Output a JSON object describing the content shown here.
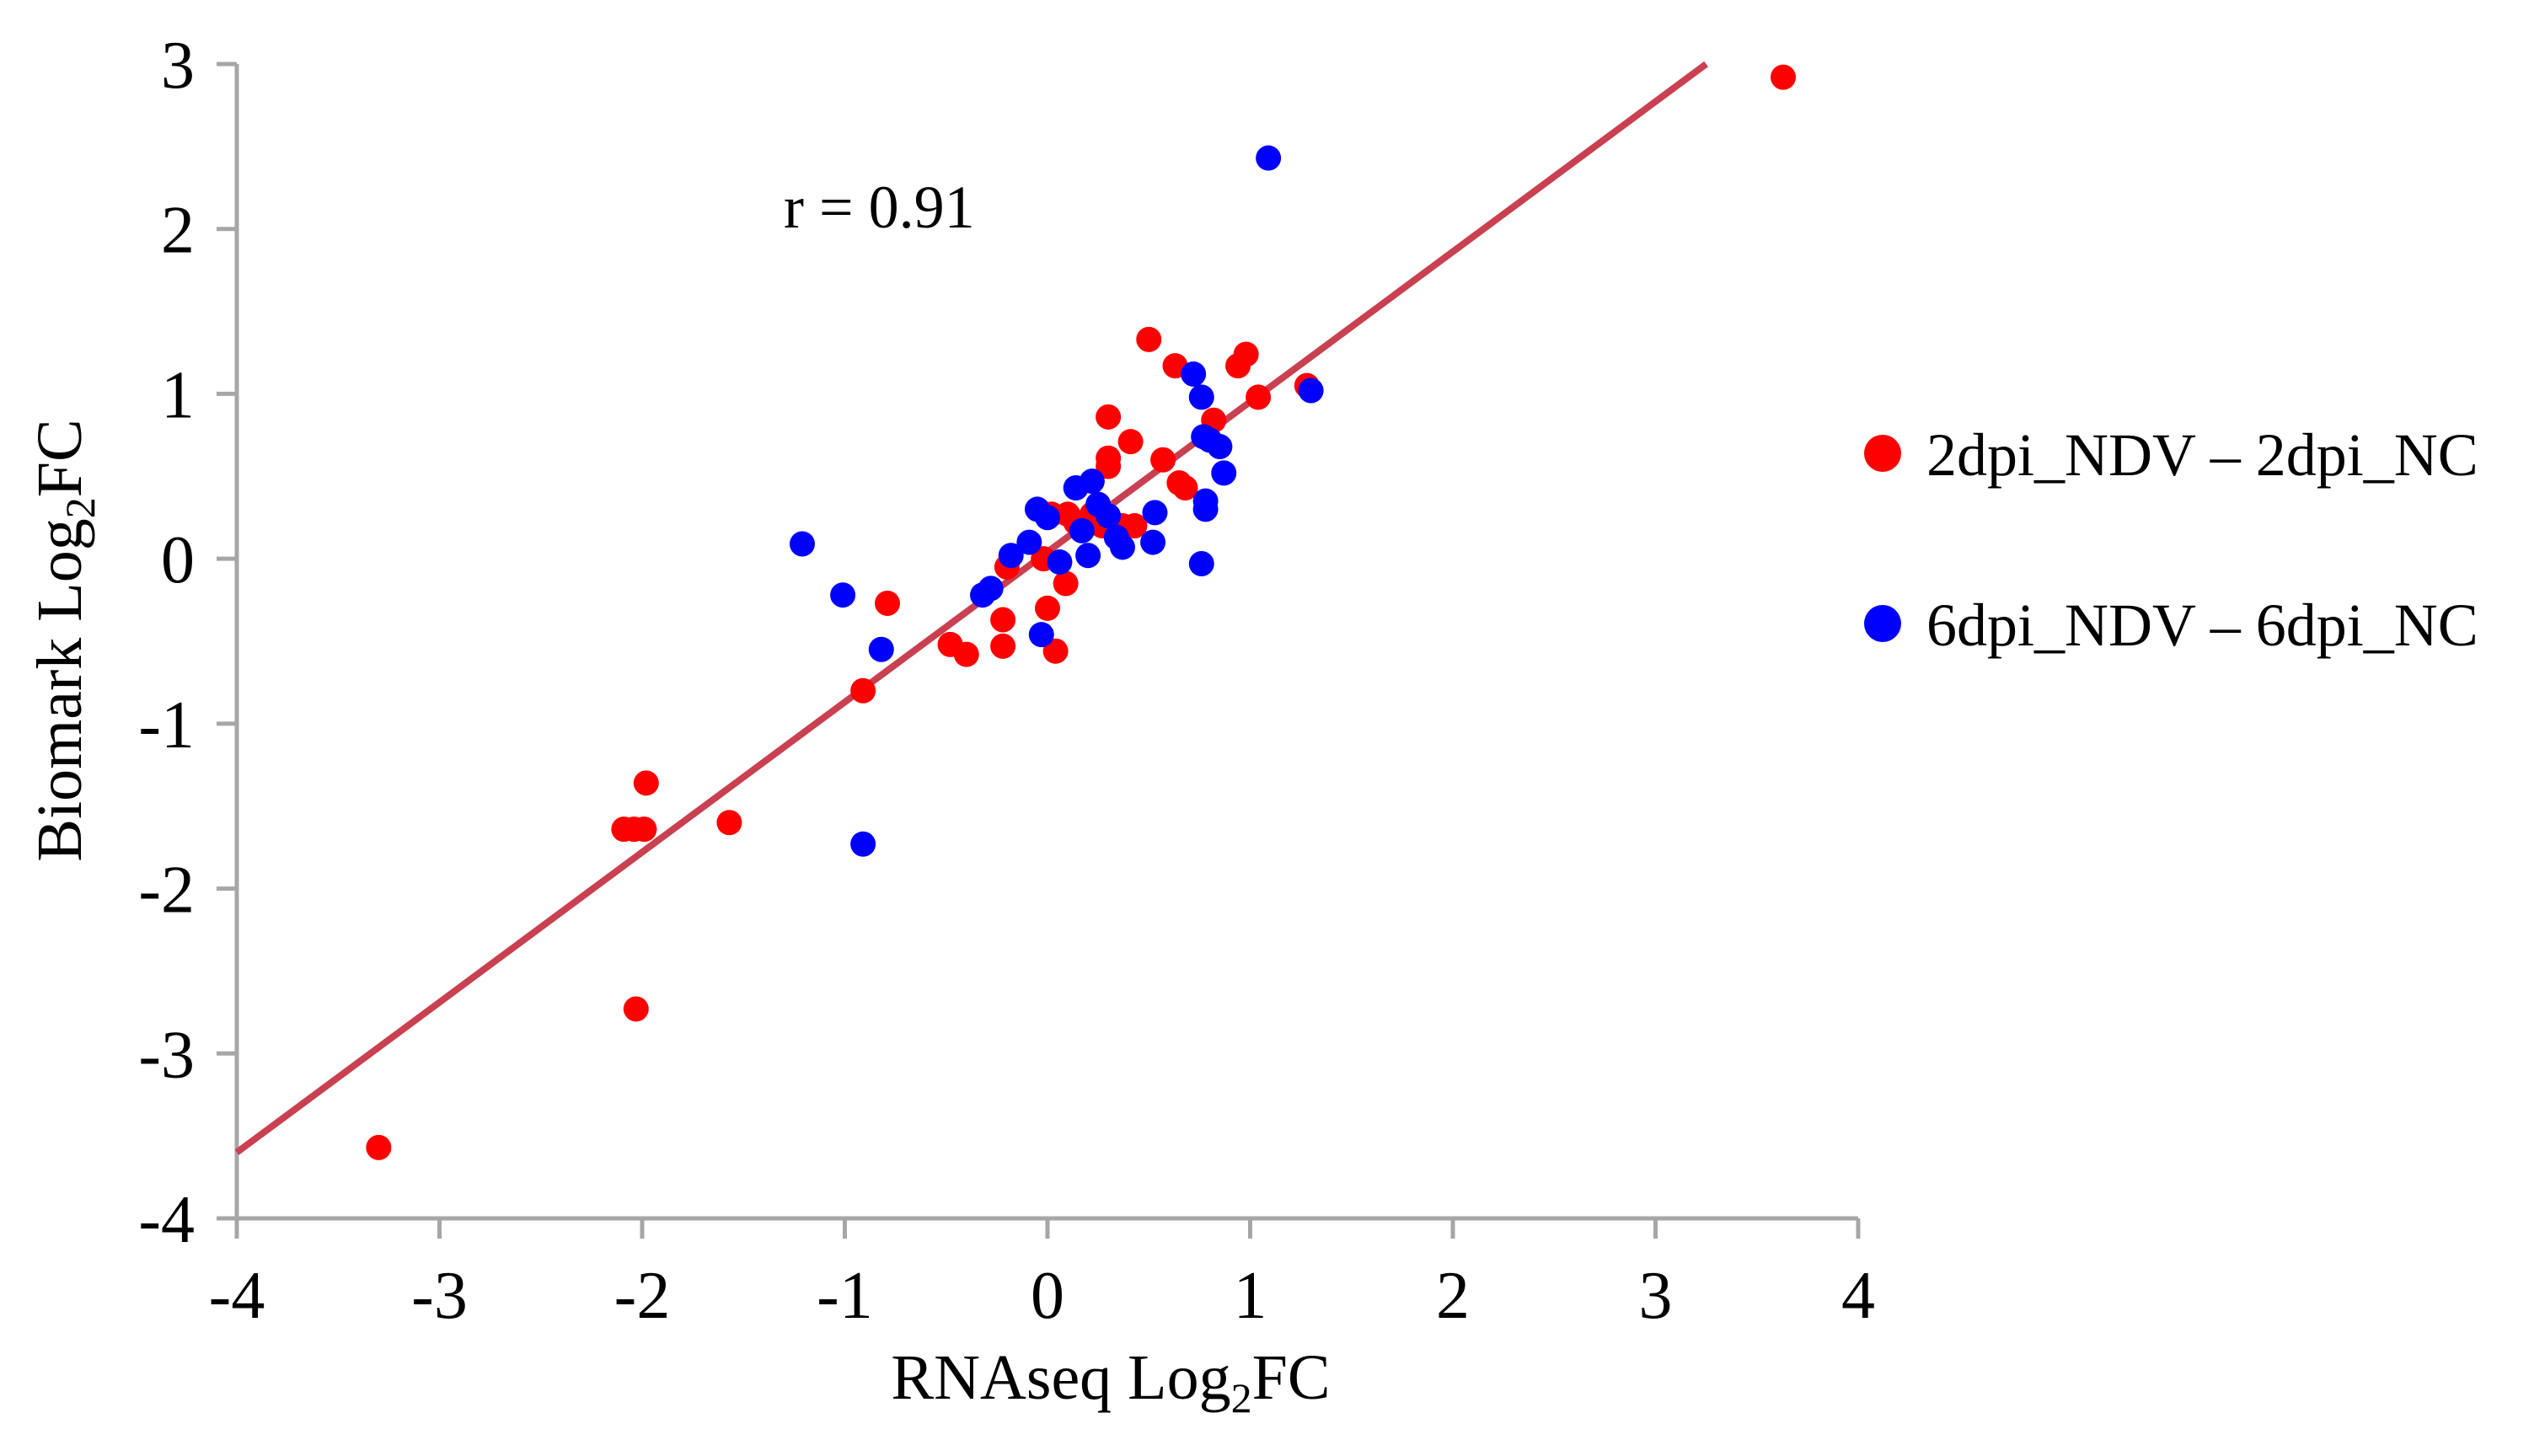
{
  "chart_data": {
    "type": "scatter",
    "title": "",
    "xlabel": {
      "main": "RNAseq Log",
      "sub": "2",
      "suffix": "FC"
    },
    "ylabel": {
      "main": "Biomark Log",
      "sub": "2",
      "suffix": "FC"
    },
    "xlim": [
      -4,
      4
    ],
    "ylim": [
      -4,
      3
    ],
    "xticks": [
      -4,
      -3,
      -2,
      -1,
      0,
      1,
      2,
      3,
      4
    ],
    "yticks": [
      -4,
      -3,
      -2,
      -1,
      0,
      1,
      2,
      3
    ],
    "xtick_labels": [
      "-4",
      "-3",
      "-2",
      "-1",
      "0",
      "1",
      "2",
      "3",
      "4"
    ],
    "ytick_labels": [
      "-4",
      "-3",
      "-2",
      "-1",
      "0",
      "1",
      "2",
      "3"
    ],
    "grid": false,
    "annotation": "r = 0.91",
    "legend_position": "right",
    "fit_line": {
      "x": [
        -4,
        3.25
      ],
      "y": [
        -3.6,
        3.0
      ],
      "color": "#c94050"
    },
    "series": [
      {
        "name": "2dpi_NDV – 2dpi_NC",
        "color": "#ff0000",
        "points": [
          [
            3.63,
            2.92
          ],
          [
            -3.3,
            -3.57
          ],
          [
            -2.03,
            -2.73
          ],
          [
            -2.09,
            -1.64
          ],
          [
            -2.04,
            -1.64
          ],
          [
            -1.99,
            -1.64
          ],
          [
            -1.98,
            -1.36
          ],
          [
            -1.57,
            -1.6
          ],
          [
            -0.91,
            -0.8
          ],
          [
            -0.79,
            -0.27
          ],
          [
            -0.48,
            -0.52
          ],
          [
            -0.4,
            -0.58
          ],
          [
            -0.22,
            -0.37
          ],
          [
            -0.22,
            -0.53
          ],
          [
            -0.2,
            -0.05
          ],
          [
            0.0,
            -0.3
          ],
          [
            0.04,
            -0.56
          ],
          [
            0.09,
            -0.15
          ],
          [
            -0.02,
            0.0
          ],
          [
            0.02,
            0.27
          ],
          [
            0.1,
            0.27
          ],
          [
            0.14,
            0.22
          ],
          [
            0.22,
            0.27
          ],
          [
            0.27,
            0.2
          ],
          [
            0.3,
            0.56
          ],
          [
            0.3,
            0.61
          ],
          [
            0.3,
            0.86
          ],
          [
            0.37,
            0.2
          ],
          [
            0.41,
            0.71
          ],
          [
            0.43,
            0.2
          ],
          [
            0.5,
            1.33
          ],
          [
            0.57,
            0.6
          ],
          [
            0.63,
            1.17
          ],
          [
            0.65,
            0.46
          ],
          [
            0.68,
            0.43
          ],
          [
            0.82,
            0.84
          ],
          [
            0.94,
            1.17
          ],
          [
            0.98,
            1.24
          ],
          [
            1.04,
            0.98
          ],
          [
            1.28,
            1.05
          ]
        ]
      },
      {
        "name": "6dpi_NDV – 6dpi_NC",
        "color": "#0000ff",
        "points": [
          [
            1.09,
            2.43
          ],
          [
            1.3,
            1.02
          ],
          [
            -1.21,
            0.09
          ],
          [
            -1.01,
            -0.22
          ],
          [
            -0.82,
            -0.55
          ],
          [
            -0.91,
            -1.73
          ],
          [
            -0.32,
            -0.22
          ],
          [
            -0.28,
            -0.18
          ],
          [
            -0.18,
            0.02
          ],
          [
            -0.09,
            0.1
          ],
          [
            -0.05,
            0.3
          ],
          [
            0.0,
            0.25
          ],
          [
            0.06,
            -0.02
          ],
          [
            -0.03,
            -0.46
          ],
          [
            0.14,
            0.43
          ],
          [
            0.17,
            0.17
          ],
          [
            0.2,
            0.02
          ],
          [
            0.22,
            0.47
          ],
          [
            0.25,
            0.33
          ],
          [
            0.3,
            0.26
          ],
          [
            0.34,
            0.13
          ],
          [
            0.37,
            0.07
          ],
          [
            0.52,
            0.1
          ],
          [
            0.53,
            0.28
          ],
          [
            0.72,
            1.12
          ],
          [
            0.76,
            0.98
          ],
          [
            0.76,
            -0.03
          ],
          [
            0.78,
            0.35
          ],
          [
            0.78,
            0.3
          ],
          [
            0.8,
            0.72
          ],
          [
            0.85,
            0.68
          ],
          [
            0.87,
            0.52
          ],
          [
            0.77,
            0.74
          ]
        ]
      }
    ]
  }
}
